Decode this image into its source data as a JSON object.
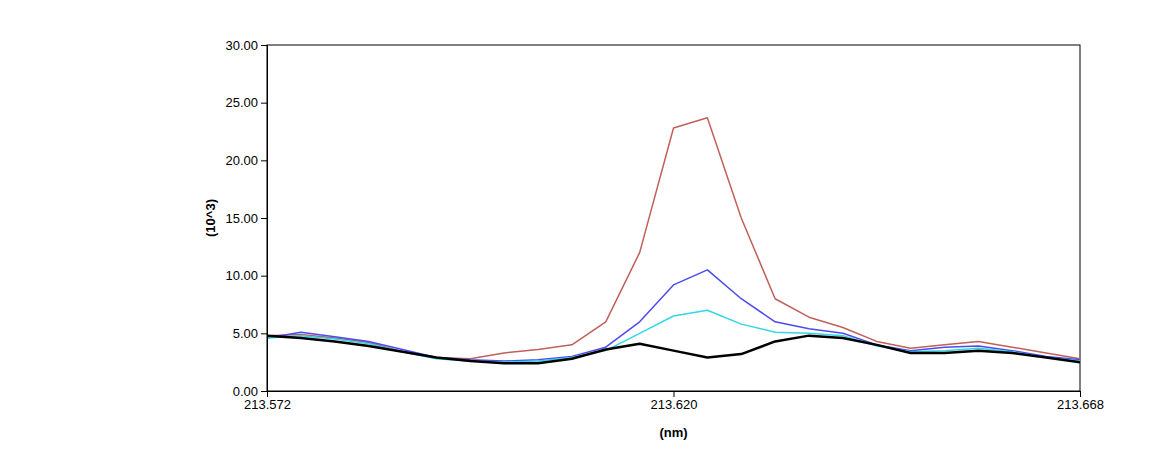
{
  "chart_data": {
    "type": "line",
    "x_label": "(nm)",
    "y_label": "(10^3)",
    "x": [
      213.572,
      213.576,
      213.58,
      213.584,
      213.588,
      213.592,
      213.596,
      213.6,
      213.604,
      213.608,
      213.612,
      213.616,
      213.62,
      213.624,
      213.628,
      213.632,
      213.636,
      213.64,
      213.644,
      213.648,
      213.652,
      213.656,
      213.66,
      213.664,
      213.668
    ],
    "series": [
      {
        "color": "#c0605a",
        "values": [
          4.8,
          4.9,
          4.6,
          4.2,
          3.4,
          2.9,
          2.8,
          3.3,
          3.6,
          4.0,
          6.0,
          12.0,
          22.8,
          23.7,
          15.0,
          8.0,
          6.4,
          5.5,
          4.3,
          3.7,
          4.0,
          4.3,
          3.8,
          3.3,
          2.8
        ]
      },
      {
        "color": "#4b4bf0",
        "values": [
          4.6,
          5.1,
          4.7,
          4.3,
          3.6,
          2.9,
          2.7,
          2.6,
          2.7,
          3.0,
          3.8,
          6.0,
          9.2,
          10.5,
          8.0,
          6.0,
          5.4,
          5.0,
          4.0,
          3.5,
          3.8,
          3.9,
          3.5,
          3.0,
          2.7
        ]
      },
      {
        "color": "#33d6e6",
        "values": [
          4.6,
          4.8,
          4.5,
          4.1,
          3.4,
          2.8,
          2.6,
          2.5,
          2.6,
          2.9,
          3.5,
          5.0,
          6.5,
          7.0,
          5.8,
          5.1,
          5.0,
          4.8,
          3.9,
          3.4,
          3.5,
          3.7,
          3.4,
          2.9,
          2.6
        ]
      },
      {
        "color": "#000000",
        "values": [
          4.8,
          4.6,
          4.3,
          3.9,
          3.4,
          2.9,
          2.6,
          2.4,
          2.4,
          2.8,
          3.6,
          4.1,
          3.5,
          2.9,
          3.2,
          4.3,
          4.8,
          4.6,
          4.0,
          3.3,
          3.3,
          3.5,
          3.3,
          2.9,
          2.5
        ]
      }
    ],
    "xlim": [
      213.572,
      213.668
    ],
    "xticks": [
      213.572,
      213.62,
      213.668
    ],
    "ylim": [
      0,
      30
    ],
    "yticks": [
      {
        "value": 0,
        "label": "0.00"
      },
      {
        "value": 5,
        "label": "5.00"
      },
      {
        "value": 10,
        "label": "10.00"
      },
      {
        "value": 15,
        "label": "15.00"
      },
      {
        "value": 20,
        "label": "20.00"
      },
      {
        "value": 25,
        "label": "25.00"
      },
      {
        "value": 30,
        "label": "30.00"
      }
    ]
  }
}
